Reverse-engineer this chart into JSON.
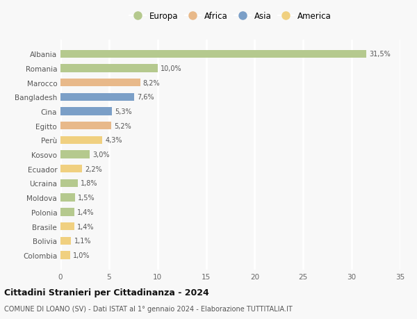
{
  "countries": [
    "Albania",
    "Romania",
    "Marocco",
    "Bangladesh",
    "Cina",
    "Egitto",
    "Perù",
    "Kosovo",
    "Ecuador",
    "Ucraina",
    "Moldova",
    "Polonia",
    "Brasile",
    "Bolivia",
    "Colombia"
  ],
  "values": [
    31.5,
    10.0,
    8.2,
    7.6,
    5.3,
    5.2,
    4.3,
    3.0,
    2.2,
    1.8,
    1.5,
    1.4,
    1.4,
    1.1,
    1.0
  ],
  "labels": [
    "31,5%",
    "10,0%",
    "8,2%",
    "7,6%",
    "5,3%",
    "5,2%",
    "4,3%",
    "3,0%",
    "2,2%",
    "1,8%",
    "1,5%",
    "1,4%",
    "1,4%",
    "1,1%",
    "1,0%"
  ],
  "continents": [
    "Europa",
    "Europa",
    "Africa",
    "Asia",
    "Asia",
    "Africa",
    "America",
    "Europa",
    "America",
    "Europa",
    "Europa",
    "Europa",
    "America",
    "America",
    "America"
  ],
  "colors": {
    "Europa": "#b5c98e",
    "Africa": "#e8b98a",
    "Asia": "#7b9fc7",
    "America": "#f0d080"
  },
  "legend_order": [
    "Europa",
    "Africa",
    "Asia",
    "America"
  ],
  "title": "Cittadini Stranieri per Cittadinanza - 2024",
  "subtitle": "COMUNE DI LOANO (SV) - Dati ISTAT al 1° gennaio 2024 - Elaborazione TUTTITALIA.IT",
  "xlim": [
    0,
    35
  ],
  "xticks": [
    0,
    5,
    10,
    15,
    20,
    25,
    30,
    35
  ],
  "background_color": "#f8f8f8",
  "grid_color": "#ffffff",
  "bar_height": 0.55
}
